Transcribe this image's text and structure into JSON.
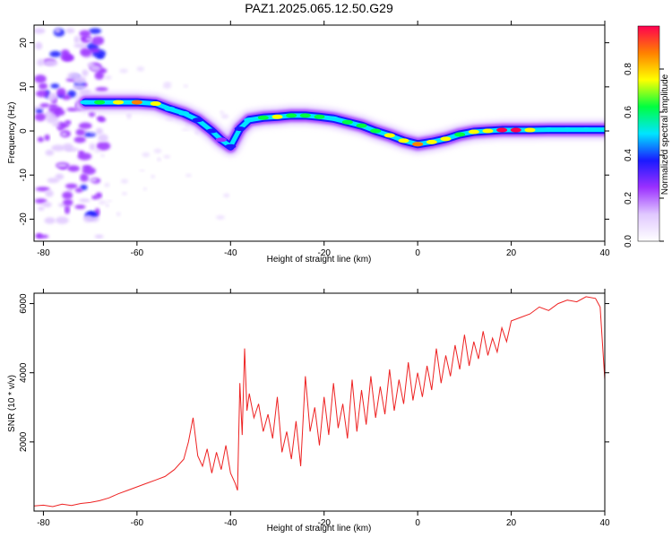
{
  "figure": {
    "title": "PAZ1.2025.065.12.50.G29"
  },
  "chart_data": [
    {
      "type": "heatmap",
      "xlabel": "Height of straight line (km)",
      "ylabel": "Frequency (Hz)",
      "xlim": [
        -82,
        40
      ],
      "ylim": [
        -25,
        24
      ],
      "xticks": [
        "-80",
        "-60",
        "-40",
        "-20",
        "0",
        "20",
        "40"
      ],
      "yticks": [
        "20",
        "10",
        "0",
        "-10",
        "-20"
      ],
      "colorbar": {
        "label": "Normalized spectral amplitude",
        "range": [
          0,
          1
        ],
        "ticks": [
          "0.0",
          "0.2",
          "0.4",
          "0.6",
          "0.8"
        ],
        "colors": [
          "#ffffff",
          "#e0c8ff",
          "#9b30ff",
          "#1a1aff",
          "#00e5ff",
          "#00ff40",
          "#ffff00",
          "#ff8000",
          "#ff0050"
        ]
      },
      "ridge": {
        "x": [
          -71,
          -68,
          -64,
          -60,
          -56,
          -53,
          -50,
          -47,
          -44,
          -42,
          -40,
          -38,
          -36,
          -33,
          -30,
          -27,
          -24,
          -21,
          -18,
          -15,
          -12,
          -9,
          -6,
          -3,
          0,
          3,
          6,
          9,
          12,
          15,
          18,
          21,
          24,
          28,
          32,
          36,
          40
        ],
        "y": [
          6.5,
          6.5,
          6.5,
          6.5,
          6.2,
          5.0,
          4.0,
          2.5,
          0.0,
          -2.0,
          -3.5,
          0.5,
          2.5,
          3.0,
          3.2,
          3.5,
          3.5,
          3.2,
          2.8,
          2.0,
          1.2,
          0.0,
          -1.0,
          -2.2,
          -3.0,
          -2.5,
          -1.8,
          -0.8,
          -0.2,
          0.0,
          0.2,
          0.2,
          0.2,
          0.3,
          0.3,
          0.3,
          0.3
        ],
        "amplitude": [
          0.55,
          0.6,
          0.7,
          0.85,
          0.8,
          0.5,
          0.45,
          0.4,
          0.35,
          0.3,
          0.35,
          0.4,
          0.5,
          0.65,
          0.7,
          0.65,
          0.65,
          0.6,
          0.55,
          0.6,
          0.6,
          0.65,
          0.7,
          0.75,
          0.85,
          0.75,
          0.7,
          0.65,
          0.7,
          0.8,
          0.95,
          0.95,
          0.7,
          0.55,
          0.5,
          0.5,
          0.45
        ]
      }
    },
    {
      "type": "line",
      "xlabel": "Height of straight line (km)",
      "ylabel": "SNR (10 * v/v)",
      "xlim": [
        -82,
        40
      ],
      "ylim": [
        0,
        6300
      ],
      "xticks": [
        "-80",
        "-60",
        "-40",
        "-20",
        "0",
        "20",
        "40"
      ],
      "yticks": [
        "6000",
        "4000",
        "2000"
      ],
      "series": [
        {
          "color": "#ee2222",
          "x": [
            -82,
            -80,
            -78,
            -76,
            -74,
            -72,
            -70,
            -68,
            -66,
            -64,
            -62,
            -60,
            -58,
            -56,
            -54,
            -52,
            -50,
            -49,
            -48,
            -47,
            -46,
            -45,
            -44,
            -43,
            -42,
            -41,
            -40,
            -39,
            -38.5,
            -38,
            -37.5,
            -37,
            -36.5,
            -36,
            -35,
            -34,
            -33,
            -32,
            -31,
            -30,
            -29,
            -28,
            -27,
            -26,
            -25,
            -24,
            -23,
            -22,
            -21,
            -20,
            -19,
            -18,
            -17,
            -16,
            -15,
            -14,
            -13,
            -12,
            -11,
            -10,
            -9,
            -8,
            -7,
            -6,
            -5,
            -4,
            -3,
            -2,
            -1,
            0,
            1,
            2,
            3,
            4,
            5,
            6,
            7,
            8,
            9,
            10,
            11,
            12,
            13,
            14,
            15,
            16,
            17,
            18,
            19,
            20,
            22,
            24,
            26,
            28,
            30,
            32,
            34,
            36,
            38,
            39,
            40
          ],
          "y": [
            150,
            170,
            130,
            200,
            160,
            220,
            250,
            300,
            380,
            500,
            600,
            700,
            800,
            900,
            1000,
            1200,
            1500,
            2000,
            2700,
            1600,
            1300,
            1800,
            1100,
            1700,
            1200,
            1900,
            1100,
            800,
            600,
            3700,
            2200,
            4700,
            2900,
            3400,
            2700,
            3100,
            2300,
            2800,
            2100,
            3300,
            1700,
            2300,
            1500,
            2600,
            1300,
            3900,
            2300,
            3000,
            1900,
            3300,
            2200,
            3700,
            2400,
            3100,
            2100,
            3800,
            2300,
            3500,
            2500,
            3900,
            2700,
            3600,
            2800,
            4100,
            2900,
            3800,
            3100,
            4300,
            3200,
            4000,
            3300,
            4200,
            3500,
            4700,
            3700,
            4500,
            3900,
            4800,
            4100,
            5100,
            4200,
            4900,
            4400,
            5200,
            4500,
            5000,
            4600,
            5300,
            4900,
            5500,
            5600,
            5700,
            5900,
            5800,
            6000,
            6100,
            6050,
            6200,
            6150,
            5900,
            3800
          ]
        }
      ]
    }
  ]
}
